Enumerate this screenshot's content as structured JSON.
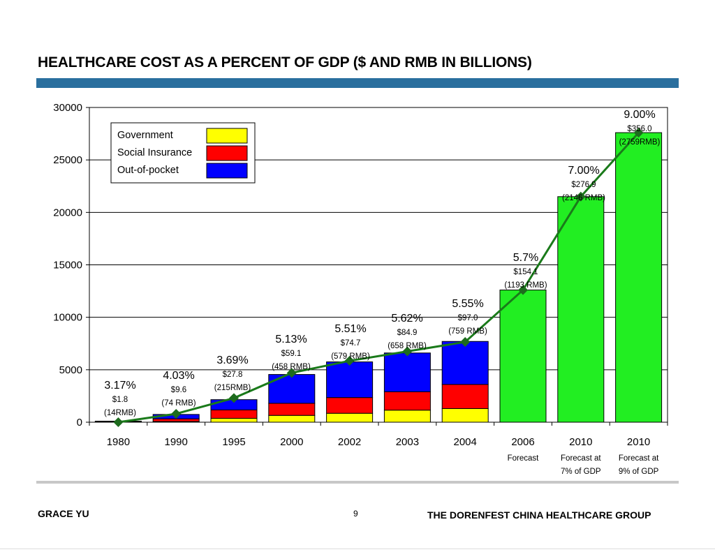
{
  "slide": {
    "title": "HEALTHCARE COST AS A PERCENT OF GDP ($ AND RMB IN BILLIONS)",
    "author": "GRACE YU",
    "page_number": "9",
    "organization": "THE DORENFEST CHINA HEALTHCARE GROUP"
  },
  "colors": {
    "government": "#ffff00",
    "social_insurance": "#ff0000",
    "out_of_pocket": "#0000ff",
    "forecast": "#22ee22",
    "line": "#1a7a1a",
    "marker": "#1e6b1e",
    "title_bar": "#2a6f9e"
  },
  "chart_data": {
    "type": "bar",
    "stacked": true,
    "title": "",
    "xlabel": "",
    "ylabel": "",
    "ylim": [
      0,
      30000
    ],
    "yticks": [
      0,
      5000,
      10000,
      15000,
      20000,
      25000,
      30000
    ],
    "grid": true,
    "legend_position": "top-left",
    "categories": [
      "1980",
      "1990",
      "1995",
      "2000",
      "2002",
      "2003",
      "2004",
      "2006",
      "2010",
      "2010"
    ],
    "category_sublabels": [
      [
        "",
        ""
      ],
      [
        "",
        ""
      ],
      [
        "",
        ""
      ],
      [
        "",
        ""
      ],
      [
        "",
        ""
      ],
      [
        "",
        ""
      ],
      [
        "",
        ""
      ],
      [
        "Forecast",
        ""
      ],
      [
        "Forecast at",
        "7% of GDP"
      ],
      [
        "Forecast at",
        "9% of GDP"
      ]
    ],
    "series": [
      {
        "name": "Government",
        "color_key": "government",
        "values": [
          20,
          70,
          370,
          650,
          850,
          1150,
          1300,
          null,
          null,
          null
        ]
      },
      {
        "name": "Social Insurance",
        "color_key": "social_insurance",
        "values": [
          20,
          250,
          800,
          1150,
          1500,
          1750,
          2300,
          null,
          null,
          null
        ]
      },
      {
        "name": "Out-of-pocket",
        "color_key": "out_of_pocket",
        "values": [
          60,
          420,
          980,
          2750,
          3400,
          3700,
          4100,
          null,
          null,
          null
        ]
      },
      {
        "name": "",
        "color_key": "forecast",
        "values": [
          null,
          null,
          null,
          null,
          null,
          null,
          null,
          12600,
          21500,
          27600
        ]
      }
    ],
    "line": {
      "values": [
        0,
        800,
        2300,
        4700,
        5850,
        6750,
        7650,
        12600,
        21500,
        27600
      ]
    },
    "annotations": [
      {
        "pct": "3.17%",
        "usd": "$1.8",
        "rmb": "(14RMB)"
      },
      {
        "pct": "4.03%",
        "usd": "$9.6",
        "rmb": "(74 RMB)"
      },
      {
        "pct": "3.69%",
        "usd": "$27.8",
        "rmb": "(215RMB)"
      },
      {
        "pct": "5.13%",
        "usd": "$59.1",
        "rmb": "(458 RMB)"
      },
      {
        "pct": "5.51%",
        "usd": "$74.7",
        "rmb": "(579 RMB)"
      },
      {
        "pct": "5.62%",
        "usd": "$84.9",
        "rmb": "(658 RMB)"
      },
      {
        "pct": "5.55%",
        "usd": "$97.0",
        "rmb": "(759 RMB)"
      },
      {
        "pct": "5.7%",
        "usd": "$154.1",
        "rmb": "(1193 RMB)"
      },
      {
        "pct": "7.00%",
        "usd": "$276.9",
        "rmb": "(2146 RMB)"
      },
      {
        "pct": "9.00%",
        "usd": "$356.0",
        "rmb": "(2759RMB)"
      }
    ]
  }
}
